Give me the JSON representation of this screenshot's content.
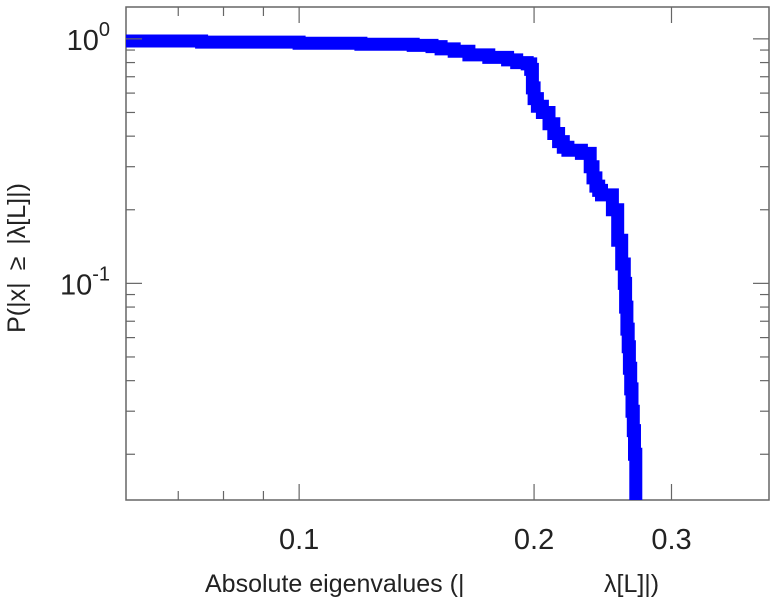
{
  "chart_data": {
    "type": "line",
    "title": "",
    "xlabel_parts": [
      "Absolute eigenvalues (|",
      "λ[L]|)"
    ],
    "ylabel_parts": [
      "P(|x|",
      "≥",
      "|λ[L]|)"
    ],
    "x_scale": "log",
    "y_scale": "log",
    "xlim": [
      0.06,
      0.4
    ],
    "ylim": [
      0.013,
      1.35
    ],
    "x_ticks": [
      {
        "value": 0.1,
        "label": "0.1"
      },
      {
        "value": 0.2,
        "label": "0.2"
      },
      {
        "value": 0.3,
        "label": "0.3"
      }
    ],
    "x_minor_ticks": [
      0.06,
      0.07,
      0.08,
      0.09,
      0.4
    ],
    "y_ticks": [
      {
        "value": 1,
        "base": "10",
        "exp": "0"
      },
      {
        "value": 0.1,
        "base": "10",
        "exp": "-1"
      }
    ],
    "y_minor_ticks": [
      0.02,
      0.03,
      0.04,
      0.05,
      0.06,
      0.07,
      0.08,
      0.09,
      0.2,
      0.3,
      0.4,
      0.5,
      0.6,
      0.7,
      0.8,
      0.9
    ],
    "grid": false,
    "legend": "none",
    "series": [
      {
        "color": "#0000ff",
        "x": [
          0.06,
          0.075,
          0.1,
          0.12,
          0.14,
          0.148,
          0.152,
          0.158,
          0.165,
          0.175,
          0.185,
          0.19,
          0.196,
          0.198,
          0.199,
          0.2,
          0.202,
          0.205,
          0.209,
          0.212,
          0.215,
          0.218,
          0.221,
          0.225,
          0.23,
          0.236,
          0.238,
          0.24,
          0.242,
          0.244,
          0.248,
          0.252,
          0.256,
          0.259,
          0.261,
          0.262,
          0.263,
          0.264,
          0.265,
          0.266,
          0.267,
          0.268,
          0.269,
          0.27
        ],
        "y": [
          0.98,
          0.97,
          0.96,
          0.95,
          0.94,
          0.93,
          0.91,
          0.89,
          0.86,
          0.84,
          0.82,
          0.8,
          0.79,
          0.75,
          0.63,
          0.57,
          0.53,
          0.5,
          0.45,
          0.41,
          0.38,
          0.36,
          0.35,
          0.35,
          0.34,
          0.3,
          0.27,
          0.25,
          0.24,
          0.23,
          0.23,
          0.2,
          0.15,
          0.12,
          0.1,
          0.08,
          0.065,
          0.055,
          0.045,
          0.037,
          0.03,
          0.025,
          0.02,
          0.013
        ]
      }
    ]
  }
}
